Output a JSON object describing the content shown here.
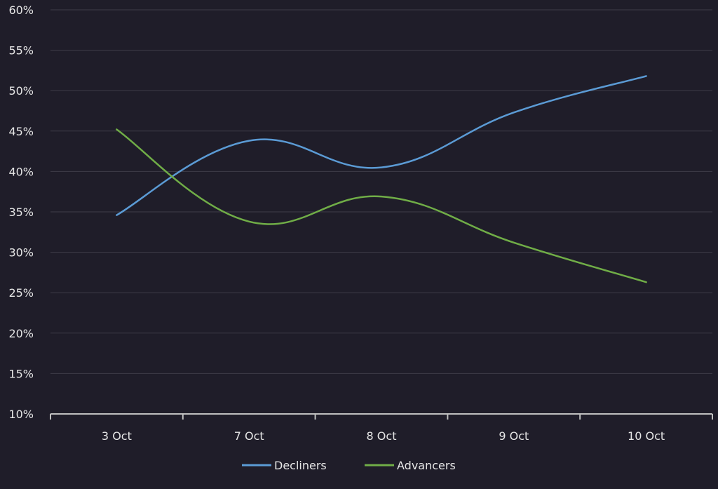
{
  "chart_data": {
    "type": "line",
    "title": "",
    "xlabel": "",
    "ylabel": "",
    "categories": [
      "3 Oct",
      "7 Oct",
      "8 Oct",
      "9 Oct",
      "10 Oct"
    ],
    "ylim": [
      10,
      60
    ],
    "yticks": [
      10,
      15,
      20,
      25,
      30,
      35,
      40,
      45,
      50,
      55,
      60
    ],
    "ytick_labels": [
      "10%",
      "15%",
      "20%",
      "25%",
      "30%",
      "35%",
      "40%",
      "45%",
      "50%",
      "55%",
      "60%"
    ],
    "grid": true,
    "legend_position": "bottom",
    "series": [
      {
        "name": "Decliners",
        "color": "#5b9bd5",
        "values": [
          34.6,
          43.8,
          40.5,
          47.3,
          51.8
        ]
      },
      {
        "name": "Advancers",
        "color": "#70ad47",
        "values": [
          45.2,
          33.8,
          36.9,
          31.2,
          26.3
        ]
      }
    ]
  }
}
